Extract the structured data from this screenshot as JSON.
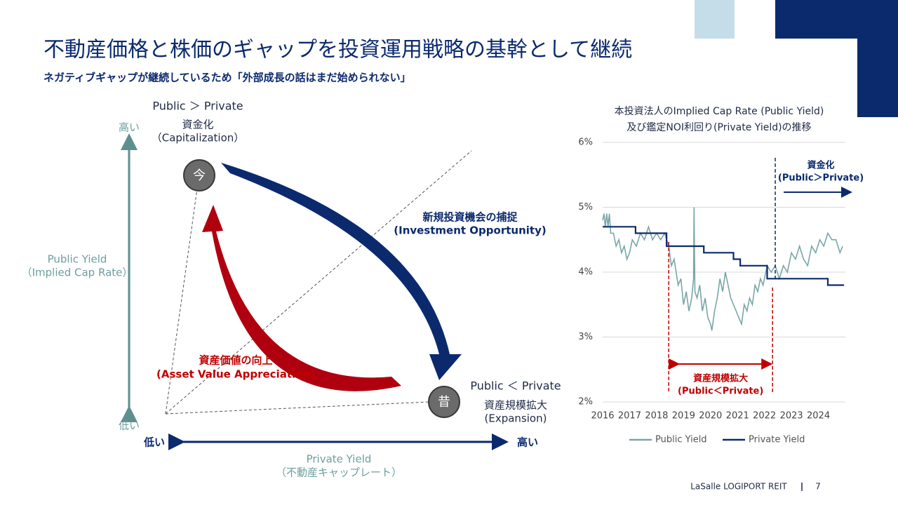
{
  "header": {
    "title": "不動産価格と株価のギャップを投資運用戦略の基幹として継続",
    "subtitle": "ネガティブギャップが継続しているため「外部成長の話はまだ始められない」"
  },
  "diagram": {
    "y_axis": {
      "high": "高い",
      "low": "低い",
      "title": "Public Yield",
      "subtitle": "（Implied Cap Rate）"
    },
    "x_axis": {
      "low": "低い",
      "high": "高い",
      "title": "Private Yield",
      "subtitle": "（不動産キャップレート）"
    },
    "now": {
      "badge": "今",
      "relation": "Public ＞ Private",
      "label": "資金化",
      "label_en": "（Capitalization）"
    },
    "past": {
      "badge": "昔",
      "relation": "Public ＜ Private",
      "label": "資産規模拡大",
      "label_en": "(Expansion)"
    },
    "arrow_blue": {
      "label": "新規投資機会の捕捉",
      "label_en": "(Investment Opportunity)"
    },
    "arrow_red": {
      "label": "資産価値の向上",
      "label_en": "(Asset Value Appreciation)"
    }
  },
  "chart_data": {
    "type": "line",
    "title": [
      "本投資法人のImplied Cap Rate (Public Yield)",
      "及び鑑定NOI利回り(Private Yield)の推移"
    ],
    "xlim": [
      2016,
      2025
    ],
    "xticks": [
      2016,
      2017,
      2018,
      2019,
      2020,
      2021,
      2022,
      2023,
      2024
    ],
    "ylim": [
      2,
      6
    ],
    "yticks": [
      {
        "value": 2,
        "label": "2%"
      },
      {
        "value": 3,
        "label": "3%"
      },
      {
        "value": 4,
        "label": "4%"
      },
      {
        "value": 5,
        "label": "5%"
      },
      {
        "value": 6,
        "label": "6%"
      }
    ],
    "grid": true,
    "legend": "bottom",
    "series": [
      {
        "name": "Public Yield",
        "color": "#7aa6a6",
        "x": [
          2016,
          2016.05,
          2016.1,
          2016.15,
          2016.2,
          2016.25,
          2016.3,
          2016.4,
          2016.5,
          2016.6,
          2016.7,
          2016.8,
          2016.9,
          2017,
          2017.1,
          2017.25,
          2017.4,
          2017.55,
          2017.7,
          2017.85,
          2018,
          2018.15,
          2018.3,
          2018.45,
          2018.55,
          2018.65,
          2018.8,
          2018.9,
          2019,
          2019.1,
          2019.2,
          2019.3,
          2019.37,
          2019.39,
          2019.42,
          2019.5,
          2019.6,
          2019.7,
          2019.8,
          2019.9,
          2020,
          2020.05,
          2020.15,
          2020.25,
          2020.35,
          2020.45,
          2020.55,
          2020.65,
          2020.75,
          2020.85,
          2020.95,
          2021.05,
          2021.15,
          2021.25,
          2021.35,
          2021.45,
          2021.55,
          2021.65,
          2021.75,
          2021.85,
          2021.95,
          2022.1,
          2022.25,
          2022.4,
          2022.55,
          2022.7,
          2022.85,
          2023,
          2023.15,
          2023.3,
          2023.45,
          2023.6,
          2023.75,
          2023.9,
          2024.05,
          2024.2,
          2024.35,
          2024.5,
          2024.65,
          2024.8,
          2024.9
        ],
        "values": [
          4.8,
          4.9,
          4.7,
          4.9,
          4.7,
          4.9,
          4.6,
          4.6,
          4.4,
          4.5,
          4.3,
          4.4,
          4.2,
          4.3,
          4.5,
          4.4,
          4.6,
          4.5,
          4.7,
          4.5,
          4.6,
          4.5,
          4.6,
          4.4,
          4.1,
          4.2,
          3.8,
          3.9,
          3.5,
          3.7,
          3.4,
          3.6,
          3.9,
          5.0,
          3.7,
          3.6,
          3.8,
          3.4,
          3.6,
          3.3,
          3.2,
          3.1,
          3.4,
          3.6,
          3.9,
          3.7,
          4.0,
          3.8,
          3.6,
          3.5,
          3.4,
          3.3,
          3.2,
          3.5,
          3.4,
          3.6,
          3.5,
          3.8,
          3.7,
          3.9,
          3.8,
          4.1,
          4.0,
          4.1,
          3.9,
          4.1,
          4.0,
          4.3,
          4.2,
          4.4,
          4.2,
          4.1,
          4.4,
          4.3,
          4.5,
          4.4,
          4.6,
          4.5,
          4.5,
          4.3,
          4.4
        ]
      },
      {
        "name": "Private Yield",
        "color": "#0b2a6e",
        "x": [
          2016,
          2017.22,
          2017.22,
          2018.37,
          2018.37,
          2019.75,
          2019.75,
          2020.85,
          2020.85,
          2021.1,
          2021.1,
          2022.1,
          2022.1,
          2024.35,
          2024.35,
          2024.95
        ],
        "values": [
          4.7,
          4.7,
          4.6,
          4.6,
          4.4,
          4.4,
          4.3,
          4.3,
          4.2,
          4.2,
          4.1,
          4.1,
          3.9,
          3.9,
          3.8,
          3.8
        ]
      }
    ],
    "annotations": [
      {
        "text": [
          "資産規模拡大",
          "(Public＜Private)"
        ],
        "x": [
          2018.45,
          2022.3
        ],
        "color": "#c00000"
      },
      {
        "text": [
          "資金化",
          "(Public＞Private)"
        ],
        "x": [
          2022.4
        ],
        "color": "#0b2a6e"
      }
    ]
  },
  "footer": {
    "company": "LaSalle LOGIPORT REIT",
    "page": "7"
  }
}
